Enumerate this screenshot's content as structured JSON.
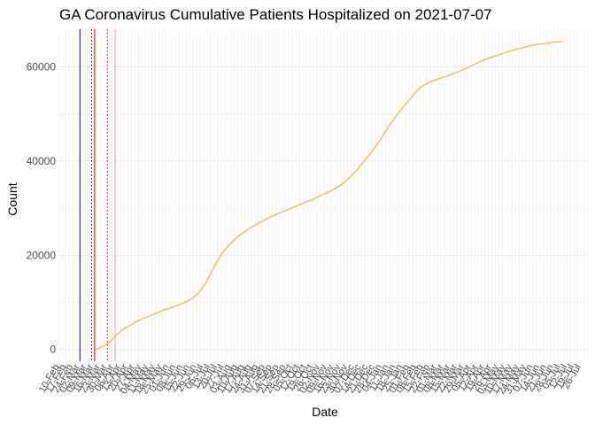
{
  "chart_data": {
    "type": "line",
    "title": "GA Coronavirus Cumulative Patients Hospitalized on 2021-07-07",
    "xlabel": "Date",
    "ylabel": "Count",
    "x_range": [
      "2020-02-10",
      "2021-08-02"
    ],
    "ylim": [
      -2500,
      68000
    ],
    "y_ticks": [
      0,
      20000,
      40000,
      60000
    ],
    "y_tick_labels": [
      "0",
      "20000",
      "40000",
      "60000"
    ],
    "x_tick_labels": [
      "10-Feb",
      "17-Feb",
      "24-Feb",
      "02-Mar",
      "09-Mar",
      "16-Mar",
      "23-Mar",
      "30-Mar",
      "06-Apr",
      "13-Apr",
      "20-Apr",
      "27-Apr",
      "04-May",
      "11-May",
      "18-May",
      "25-May",
      "01-Jun",
      "08-Jun",
      "15-Jun",
      "22-Jun",
      "29-Jun",
      "06-Jul",
      "13-Jul",
      "20-Jul",
      "27-Jul",
      "03-Aug",
      "10-Aug",
      "17-Aug",
      "24-Aug",
      "31-Aug",
      "07-Sep",
      "14-Sep",
      "21-Sep",
      "28-Sep",
      "05-Oct",
      "12-Oct",
      "19-Oct",
      "26-Oct",
      "02-Nov",
      "09-Nov",
      "16-Nov",
      "23-Nov",
      "30-Nov",
      "07-Dec",
      "14-Dec",
      "21-Dec",
      "28-Dec",
      "04-Jan",
      "11-Jan",
      "18-Jan",
      "25-Jan",
      "01-Feb",
      "08-Feb",
      "15-Feb",
      "22-Feb",
      "01-Mar",
      "08-Mar",
      "15-Mar",
      "22-Mar",
      "29-Mar",
      "05-Apr",
      "12-Apr",
      "19-Apr",
      "26-Apr",
      "03-May",
      "10-May",
      "17-May",
      "24-May",
      "31-May",
      "07-Jun",
      "14-Jun",
      "21-Jun",
      "28-Jun",
      "05-Jul",
      "12-Jul",
      "19-Jul",
      "26-Jul"
    ],
    "grid": true,
    "series": [
      {
        "color": "#FFA500",
        "points": [
          [
            "2020-03-18",
            0
          ],
          [
            "2020-03-25",
            600
          ],
          [
            "2020-04-01",
            1500
          ],
          [
            "2020-04-08",
            3000
          ],
          [
            "2020-04-15",
            4300
          ],
          [
            "2020-04-22",
            5100
          ],
          [
            "2020-04-29",
            6000
          ],
          [
            "2020-05-06",
            6600
          ],
          [
            "2020-05-13",
            7200
          ],
          [
            "2020-05-20",
            7800
          ],
          [
            "2020-05-27",
            8400
          ],
          [
            "2020-06-03",
            8900
          ],
          [
            "2020-06-10",
            9400
          ],
          [
            "2020-06-17",
            10000
          ],
          [
            "2020-06-24",
            10800
          ],
          [
            "2020-07-01",
            12000
          ],
          [
            "2020-07-08",
            14000
          ],
          [
            "2020-07-15",
            16800
          ],
          [
            "2020-07-22",
            19500
          ],
          [
            "2020-07-29",
            21500
          ],
          [
            "2020-08-05",
            23000
          ],
          [
            "2020-08-12",
            24300
          ],
          [
            "2020-08-19",
            25300
          ],
          [
            "2020-08-26",
            26200
          ],
          [
            "2020-09-02",
            27000
          ],
          [
            "2020-09-09",
            27800
          ],
          [
            "2020-09-16",
            28500
          ],
          [
            "2020-09-23",
            29100
          ],
          [
            "2020-09-30",
            29700
          ],
          [
            "2020-10-07",
            30300
          ],
          [
            "2020-10-14",
            30900
          ],
          [
            "2020-10-21",
            31500
          ],
          [
            "2020-10-28",
            32100
          ],
          [
            "2020-11-04",
            32800
          ],
          [
            "2020-11-11",
            33500
          ],
          [
            "2020-11-18",
            34300
          ],
          [
            "2020-11-25",
            35200
          ],
          [
            "2020-12-02",
            36500
          ],
          [
            "2020-12-09",
            38000
          ],
          [
            "2020-12-16",
            39800
          ],
          [
            "2020-12-23",
            41500
          ],
          [
            "2020-12-30",
            43500
          ],
          [
            "2021-01-06",
            45800
          ],
          [
            "2021-01-13",
            48000
          ],
          [
            "2021-01-20",
            50000
          ],
          [
            "2021-01-27",
            51800
          ],
          [
            "2021-02-03",
            53500
          ],
          [
            "2021-02-10",
            55200
          ],
          [
            "2021-02-17",
            56300
          ],
          [
            "2021-02-24",
            57000
          ],
          [
            "2021-03-03",
            57500
          ],
          [
            "2021-03-10",
            58000
          ],
          [
            "2021-03-17",
            58500
          ],
          [
            "2021-03-24",
            59100
          ],
          [
            "2021-03-31",
            59700
          ],
          [
            "2021-04-07",
            60400
          ],
          [
            "2021-04-14",
            61100
          ],
          [
            "2021-04-21",
            61700
          ],
          [
            "2021-04-28",
            62200
          ],
          [
            "2021-05-05",
            62700
          ],
          [
            "2021-05-12",
            63200
          ],
          [
            "2021-05-19",
            63600
          ],
          [
            "2021-05-26",
            64000
          ],
          [
            "2021-06-02",
            64400
          ],
          [
            "2021-06-09",
            64700
          ],
          [
            "2021-06-16",
            64900
          ],
          [
            "2021-06-23",
            65100
          ],
          [
            "2021-06-30",
            65300
          ],
          [
            "2021-07-07",
            65400
          ]
        ]
      }
    ],
    "vertical_lines": [
      {
        "date": "2020-03-02",
        "color": "#0000CD",
        "style": "solid"
      },
      {
        "date": "2020-03-14",
        "color": "#000000",
        "style": "dotted"
      },
      {
        "date": "2020-03-17",
        "color": "#CC0000",
        "style": "solid"
      },
      {
        "date": "2020-03-30",
        "color": "#CC0000",
        "style": "dotted"
      },
      {
        "date": "2020-04-07",
        "color": "#F4A6A6",
        "style": "solid"
      }
    ]
  }
}
